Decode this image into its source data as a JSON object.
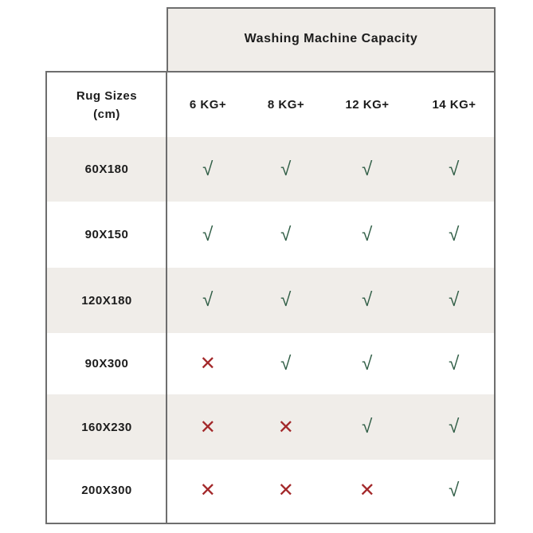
{
  "title": "Washing Machine Capacity",
  "row_header": {
    "line1": "Rug Sizes",
    "line2": "(cm)"
  },
  "columns": [
    "6 KG+",
    "8 KG+",
    "12 KG+",
    "14 KG+"
  ],
  "rows": [
    {
      "size": "60X180",
      "fits": [
        true,
        true,
        true,
        true
      ]
    },
    {
      "size": "90X150",
      "fits": [
        true,
        true,
        true,
        true
      ]
    },
    {
      "size": "120X180",
      "fits": [
        true,
        true,
        true,
        true
      ]
    },
    {
      "size": "90X300",
      "fits": [
        false,
        true,
        true,
        true
      ]
    },
    {
      "size": "160X230",
      "fits": [
        false,
        false,
        true,
        true
      ]
    },
    {
      "size": "200X300",
      "fits": [
        false,
        false,
        false,
        true
      ]
    }
  ],
  "symbols": {
    "yes": "√",
    "no": "✕"
  },
  "colors": {
    "check": "#2f5d45",
    "cross": "#a3282a",
    "shade": "#f0ede9",
    "border": "#6e6e6e"
  }
}
